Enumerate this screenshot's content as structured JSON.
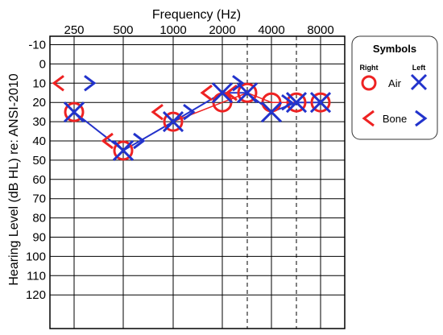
{
  "chart_data": {
    "type": "scatter",
    "xlabel": "Frequency (Hz)",
    "ylabel": "Hearing Level (dB HL) re: ANSI-2010",
    "x_ticks": [
      "250",
      "500",
      "1000",
      "2000",
      "4000",
      "8000"
    ],
    "y_ticks": [
      -10,
      0,
      10,
      20,
      30,
      40,
      50,
      60,
      70,
      80,
      90,
      100,
      110,
      120
    ],
    "ylim": [
      -10,
      120
    ],
    "y_inverted": true,
    "grid": true,
    "interoctave_dashed_lines": [
      "3000",
      "6000"
    ],
    "series": [
      {
        "name": "Right Air",
        "symbol": "circle",
        "color": "#ee2222",
        "connected": true,
        "x": [
          "250",
          "500",
          "1000",
          "2000",
          "3000",
          "4000",
          "6000",
          "8000"
        ],
        "y": [
          25,
          45,
          30,
          20,
          15,
          20,
          20,
          20
        ]
      },
      {
        "name": "Left Air",
        "symbol": "x",
        "color": "#2233cc",
        "connected": true,
        "x": [
          "250",
          "500",
          "1000",
          "2000",
          "3000",
          "4000",
          "6000",
          "8000"
        ],
        "y": [
          25,
          45,
          30,
          15,
          15,
          25,
          20,
          20
        ]
      },
      {
        "name": "Right Bone",
        "symbol": "lt",
        "color": "#ee2222",
        "connected": false,
        "x": [
          "250",
          "500",
          "1000",
          "2000",
          "3000"
        ],
        "y": [
          10,
          40,
          25,
          15,
          15
        ]
      },
      {
        "name": "Left Bone",
        "symbol": "gt",
        "color": "#2233cc",
        "connected": false,
        "x": [
          "250",
          "500",
          "1000",
          "2000",
          "4000"
        ],
        "y": [
          10,
          40,
          25,
          10,
          20
        ]
      }
    ]
  },
  "legend": {
    "title": "Symbols",
    "right_label": "Right",
    "left_label": "Left",
    "air_label": "Air",
    "bone_label": "Bone"
  }
}
